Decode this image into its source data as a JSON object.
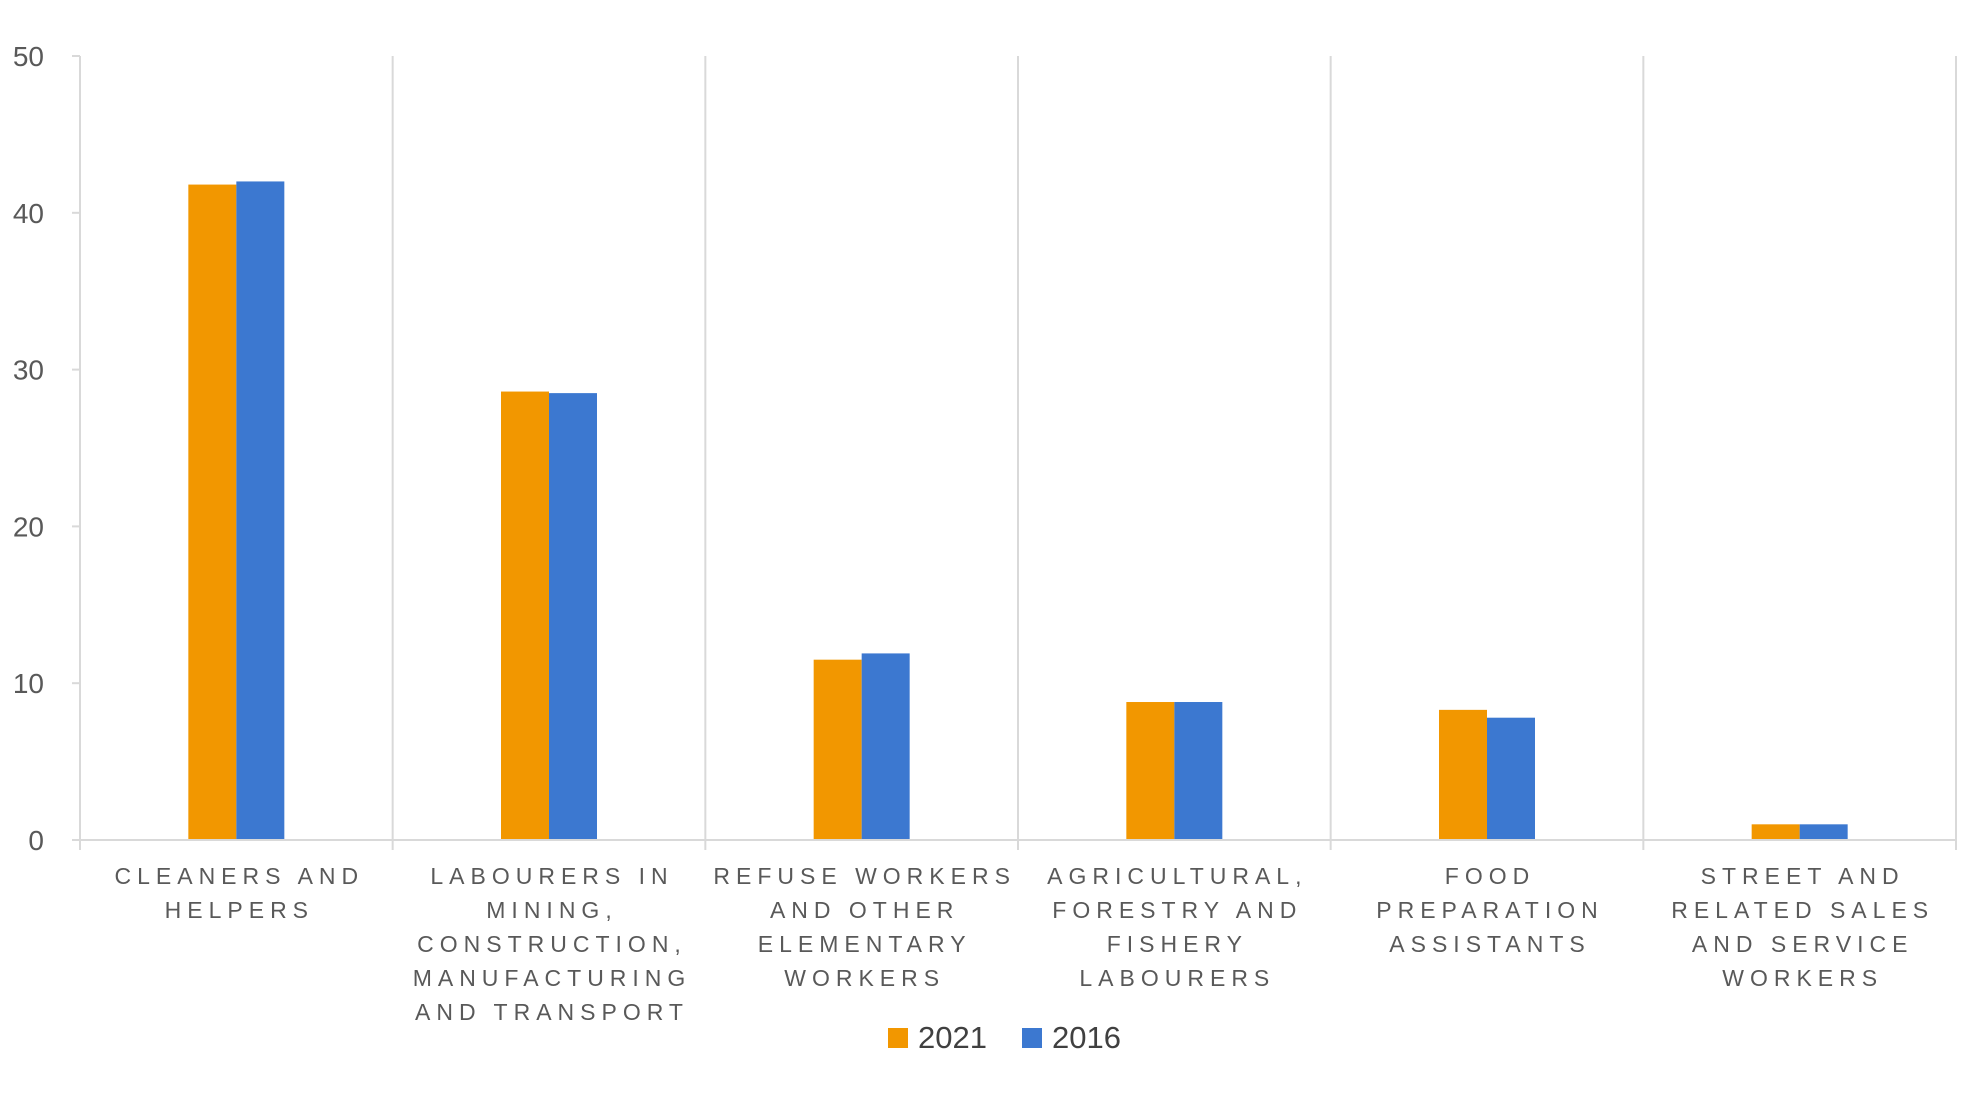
{
  "chart_data": {
    "type": "bar",
    "title": "",
    "xlabel": "",
    "ylabel": "",
    "ylim": [
      0,
      50
    ],
    "yticks": [
      0,
      10,
      20,
      30,
      40,
      50
    ],
    "grid": "vertical category separators",
    "legend_position": "bottom-center",
    "categories": [
      [
        "CLEANERS AND",
        "HELPERS"
      ],
      [
        "LABOURERS IN",
        "MINING,",
        "CONSTRUCTION,",
        "MANUFACTURING",
        "AND TRANSPORT"
      ],
      [
        "REFUSE WORKERS",
        "AND OTHER",
        "ELEMENTARY",
        "WORKERS"
      ],
      [
        "AGRICULTURAL,",
        "FORESTRY AND",
        "FISHERY",
        "LABOURERS"
      ],
      [
        "FOOD",
        "PREPARATION",
        "ASSISTANTS"
      ],
      [
        "STREET AND",
        "RELATED SALES",
        "AND SERVICE",
        "WORKERS"
      ]
    ],
    "series": [
      {
        "name": "2021",
        "color": "#F29700",
        "values": [
          41.8,
          28.6,
          11.5,
          8.8,
          8.3,
          1.0
        ]
      },
      {
        "name": "2016",
        "color": "#3C78D0",
        "values": [
          42.0,
          28.5,
          11.9,
          8.8,
          7.8,
          1.0
        ]
      }
    ]
  }
}
